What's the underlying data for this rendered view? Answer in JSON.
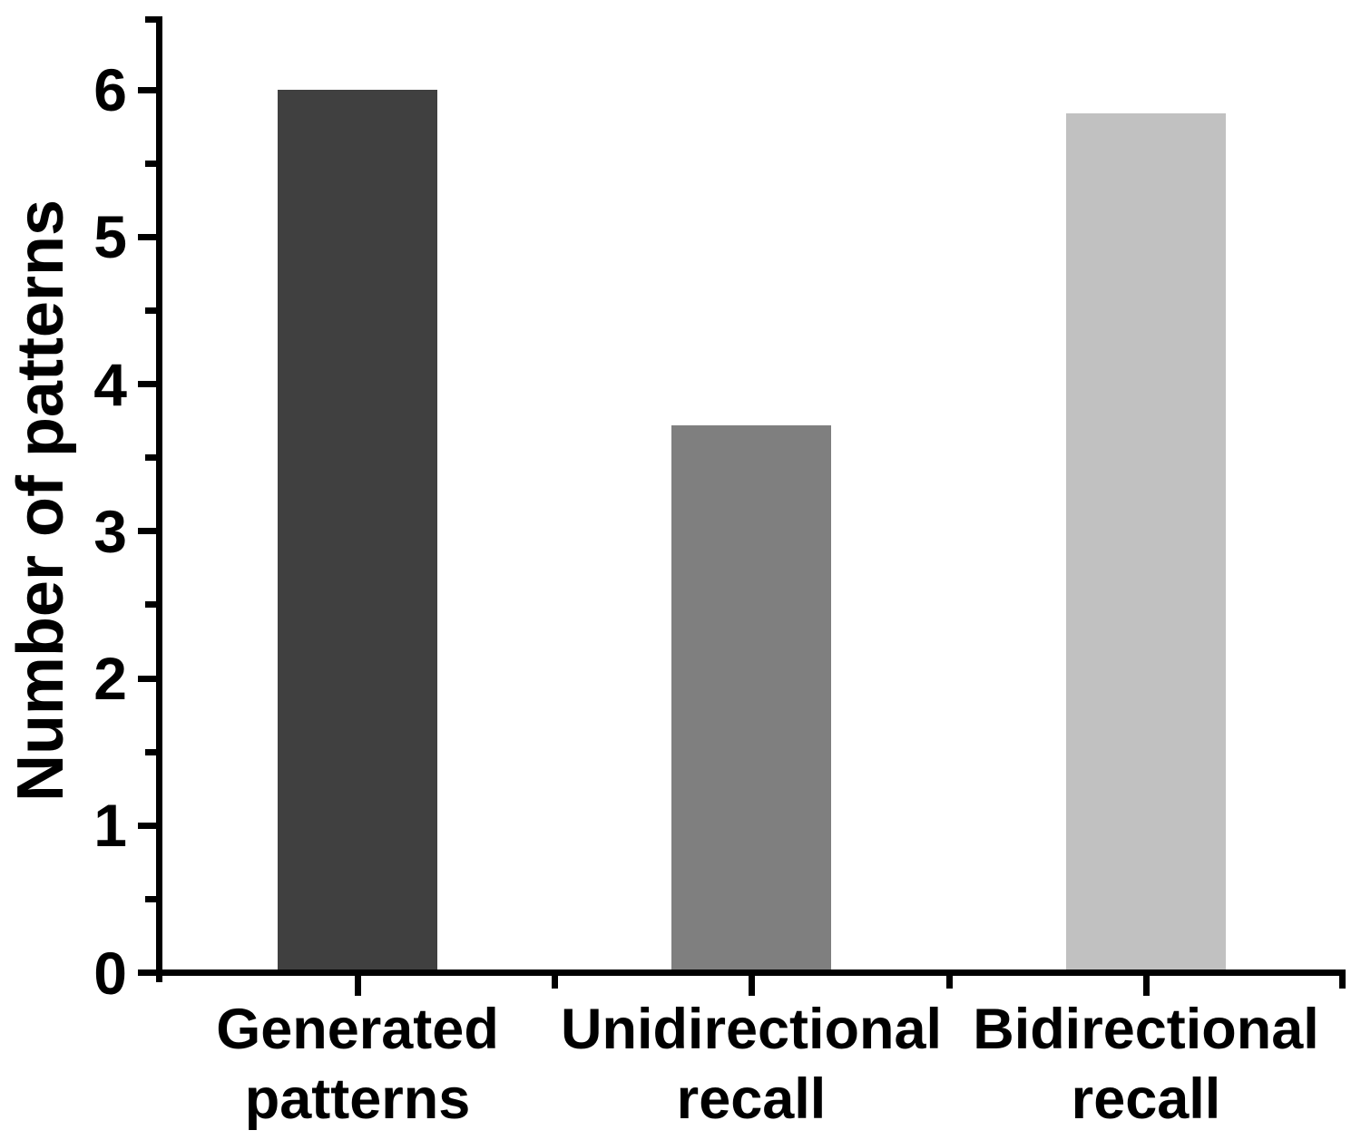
{
  "chart_data": {
    "type": "bar",
    "title": "",
    "xlabel": "",
    "ylabel": "Number of patterns",
    "categories": [
      "Generated patterns",
      "Unidirectional recall",
      "Bidirectional recall"
    ],
    "category_label_lines": [
      [
        "Generated",
        "patterns"
      ],
      [
        "Unidirectional",
        "recall"
      ],
      [
        "Bidirectional",
        "recall"
      ]
    ],
    "values": [
      6.0,
      3.72,
      5.84
    ],
    "bar_colors": [
      "#404040",
      "#7f7f7f",
      "#c1c1c1"
    ],
    "ylim": [
      0,
      6.5
    ],
    "yticks": [
      0,
      1,
      2,
      3,
      4,
      5,
      6
    ],
    "ytick_labels": [
      "0",
      "1",
      "2",
      "3",
      "4",
      "5",
      "6"
    ],
    "y_minor_tick_step": 0.5,
    "grid": "off",
    "legend": "none",
    "axis_color": "#000000",
    "background_color": "#ffffff"
  }
}
